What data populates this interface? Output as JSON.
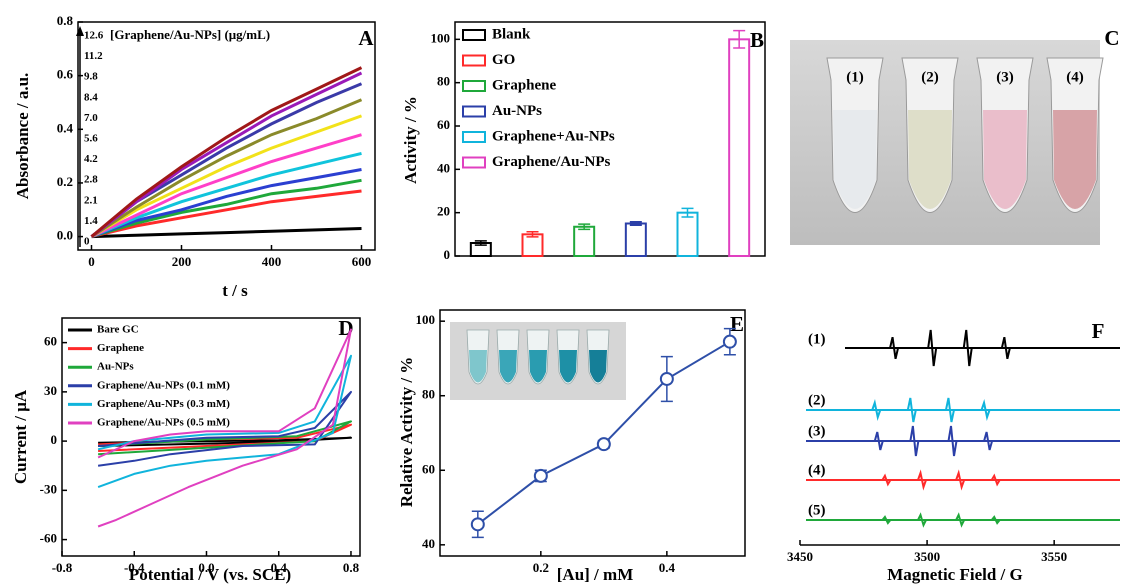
{
  "chart_data": [
    {
      "type": "line",
      "label": "A",
      "annotation": "[Graphene/Au-NPs] (μg/mL)",
      "xlabel": "t / s",
      "ylabel": "Absorbance / a.u.",
      "x": [
        0,
        100,
        200,
        300,
        400,
        500,
        600
      ],
      "xlim": [
        -30,
        630
      ],
      "xticks": [
        0,
        200,
        400,
        600
      ],
      "ylim": [
        -0.05,
        0.8
      ],
      "yticks": [
        {
          "value": 0,
          "label": "0.0"
        },
        0.2,
        0.4,
        0.6,
        0.8
      ],
      "series": [
        {
          "name": "0",
          "color": "#000000",
          "values": [
            0,
            0.005,
            0.01,
            0.015,
            0.02,
            0.025,
            0.03
          ]
        },
        {
          "name": "1.4",
          "color": "#ff2a2a",
          "values": [
            0,
            0.04,
            0.07,
            0.1,
            0.13,
            0.15,
            0.17
          ]
        },
        {
          "name": "2.1",
          "color": "#1fa83a",
          "values": [
            0,
            0.05,
            0.09,
            0.12,
            0.16,
            0.18,
            0.21
          ]
        },
        {
          "name": "2.8",
          "color": "#2b3fd1",
          "values": [
            0,
            0.06,
            0.1,
            0.15,
            0.19,
            0.22,
            0.25
          ]
        },
        {
          "name": "4.2",
          "color": "#10c4dc",
          "values": [
            0,
            0.07,
            0.13,
            0.18,
            0.23,
            0.27,
            0.31
          ]
        },
        {
          "name": "5.6",
          "color": "#ff3fc8",
          "values": [
            0,
            0.08,
            0.16,
            0.22,
            0.28,
            0.33,
            0.38
          ]
        },
        {
          "name": "7.0",
          "color": "#f2e21a",
          "values": [
            0,
            0.1,
            0.18,
            0.26,
            0.33,
            0.39,
            0.45
          ]
        },
        {
          "name": "8.4",
          "color": "#8a8a2a",
          "values": [
            0,
            0.11,
            0.21,
            0.3,
            0.38,
            0.44,
            0.51
          ]
        },
        {
          "name": "9.8",
          "color": "#3a3aa8",
          "values": [
            0,
            0.13,
            0.23,
            0.33,
            0.42,
            0.5,
            0.57
          ]
        },
        {
          "name": "11.2",
          "color": "#9a1ab8",
          "values": [
            0,
            0.13,
            0.25,
            0.35,
            0.45,
            0.53,
            0.61
          ]
        },
        {
          "name": "12.6",
          "color": "#a01818",
          "values": [
            0,
            0.14,
            0.26,
            0.37,
            0.47,
            0.55,
            0.63
          ]
        }
      ]
    },
    {
      "type": "bar",
      "label": "B",
      "ylabel": "Activity / %",
      "categories": [
        "Blank",
        "GO",
        "Graphene",
        "Au-NPs",
        "Graphene+Au-NPs",
        "Graphene/Au-NPs"
      ],
      "colors": [
        "#000000",
        "#ff2a2a",
        "#1fa83a",
        "#2b3fa8",
        "#10b4dc",
        "#e040c0"
      ],
      "values": [
        6,
        10,
        13.5,
        15,
        20,
        100
      ],
      "errors": [
        1,
        1.2,
        1.2,
        0.8,
        2,
        4
      ],
      "ylim": [
        0,
        108
      ],
      "yticks": [
        0,
        20,
        40,
        60,
        80,
        100
      ]
    },
    {
      "type": "photo",
      "label": "C",
      "labels": [
        "(1)",
        "(2)",
        "(3)",
        "(4)"
      ]
    },
    {
      "type": "cv",
      "label": "D",
      "xlabel": "Potential / V (vs. SCE)",
      "ylabel": "Current / μA",
      "xlim": [
        -0.8,
        0.85
      ],
      "xticks": [
        -0.8,
        -0.4,
        {
          "value": 0,
          "label": "0.0"
        },
        0.4,
        0.8
      ],
      "ylim": [
        -70,
        75
      ],
      "yticks": [
        -60,
        -30,
        0,
        30,
        60
      ],
      "series": [
        {
          "name": "Bare GC",
          "color": "#000000",
          "x": [
            -0.6,
            0,
            0.4,
            0.8,
            0.4,
            0,
            -0.6
          ],
          "values": [
            -1,
            0,
            0.5,
            2,
            -0.5,
            -1.5,
            -3
          ]
        },
        {
          "name": "Graphene",
          "color": "#ff2a2a",
          "x": [
            -0.6,
            0,
            0.5,
            0.8,
            0.6,
            0,
            -0.6
          ],
          "values": [
            -2,
            1,
            2,
            10,
            0,
            -3,
            -6
          ]
        },
        {
          "name": "Au-NPs",
          "color": "#1fa83a",
          "x": [
            -0.6,
            0,
            0.5,
            0.8,
            0.6,
            0,
            -0.6
          ],
          "values": [
            -3,
            1,
            3,
            12,
            0,
            -4,
            -8
          ]
        },
        {
          "name": "Graphene/Au-NPs (0.1 mM)",
          "color": "#2b3fa8",
          "x": [
            -0.6,
            0,
            0.4,
            0.6,
            0.8,
            0.6,
            0.2,
            -0.2,
            -0.4,
            -0.6
          ],
          "values": [
            -3,
            2,
            3,
            8,
            30,
            -2,
            -3,
            -8,
            -12,
            -15
          ]
        },
        {
          "name": "Graphene/Au-NPs (0.3 mM)",
          "color": "#10b4dc",
          "x": [
            -0.6,
            -0.4,
            0,
            0.4,
            0.6,
            0.8,
            0.7,
            0.4,
            0,
            -0.2,
            -0.4,
            -0.6
          ],
          "values": [
            -5,
            0,
            4,
            5,
            12,
            52,
            5,
            -8,
            -12,
            -15,
            -20,
            -28
          ]
        },
        {
          "name": "Graphene/Au-NPs (0.5 mM)",
          "color": "#e040c0",
          "x": [
            -0.6,
            -0.4,
            -0.2,
            0,
            0.4,
            0.6,
            0.8,
            0.7,
            0.5,
            0.2,
            -0.1,
            -0.3,
            -0.5,
            -0.6
          ],
          "values": [
            -10,
            0,
            4,
            6,
            6,
            20,
            68,
            10,
            -5,
            -15,
            -28,
            -38,
            -48,
            -52
          ]
        }
      ]
    },
    {
      "type": "line",
      "label": "E",
      "xlabel": "[Au] / mM",
      "ylabel": "Relative Activity / %",
      "color": "#2e4fa8",
      "x": [
        0.1,
        0.2,
        0.3,
        0.4,
        0.5
      ],
      "values": [
        45.5,
        58.5,
        67,
        84.5,
        94.5
      ],
      "errors": [
        3.5,
        1.5,
        1,
        6,
        3.5
      ],
      "xlim": [
        0.04,
        0.524
      ],
      "xticks": [
        0.2,
        0.4
      ],
      "ylim": [
        37,
        103
      ],
      "yticks": [
        40,
        60,
        80,
        100
      ]
    },
    {
      "type": "epr",
      "label": "F",
      "xlabel": "Magnetic Field / G",
      "xlim": [
        3450,
        3570
      ],
      "xticks": [
        3450,
        3500,
        3550
      ],
      "series": [
        {
          "name": "(1)",
          "color": "#000000",
          "peaks": [
            3487,
            3502,
            3516,
            3531
          ]
        },
        {
          "name": "(2)",
          "color": "#10b4dc",
          "peaks": [
            3480,
            3494,
            3509,
            3523
          ]
        },
        {
          "name": "(3)",
          "color": "#2b3fa8",
          "peaks": [
            3481,
            3495,
            3510,
            3524
          ]
        },
        {
          "name": "(4)",
          "color": "#ff2a2a",
          "peaks": [
            3484,
            3498,
            3513,
            3527
          ]
        },
        {
          "name": "(5)",
          "color": "#1fa83a",
          "peaks": [
            3484,
            3498,
            3513,
            3527
          ]
        }
      ]
    }
  ]
}
